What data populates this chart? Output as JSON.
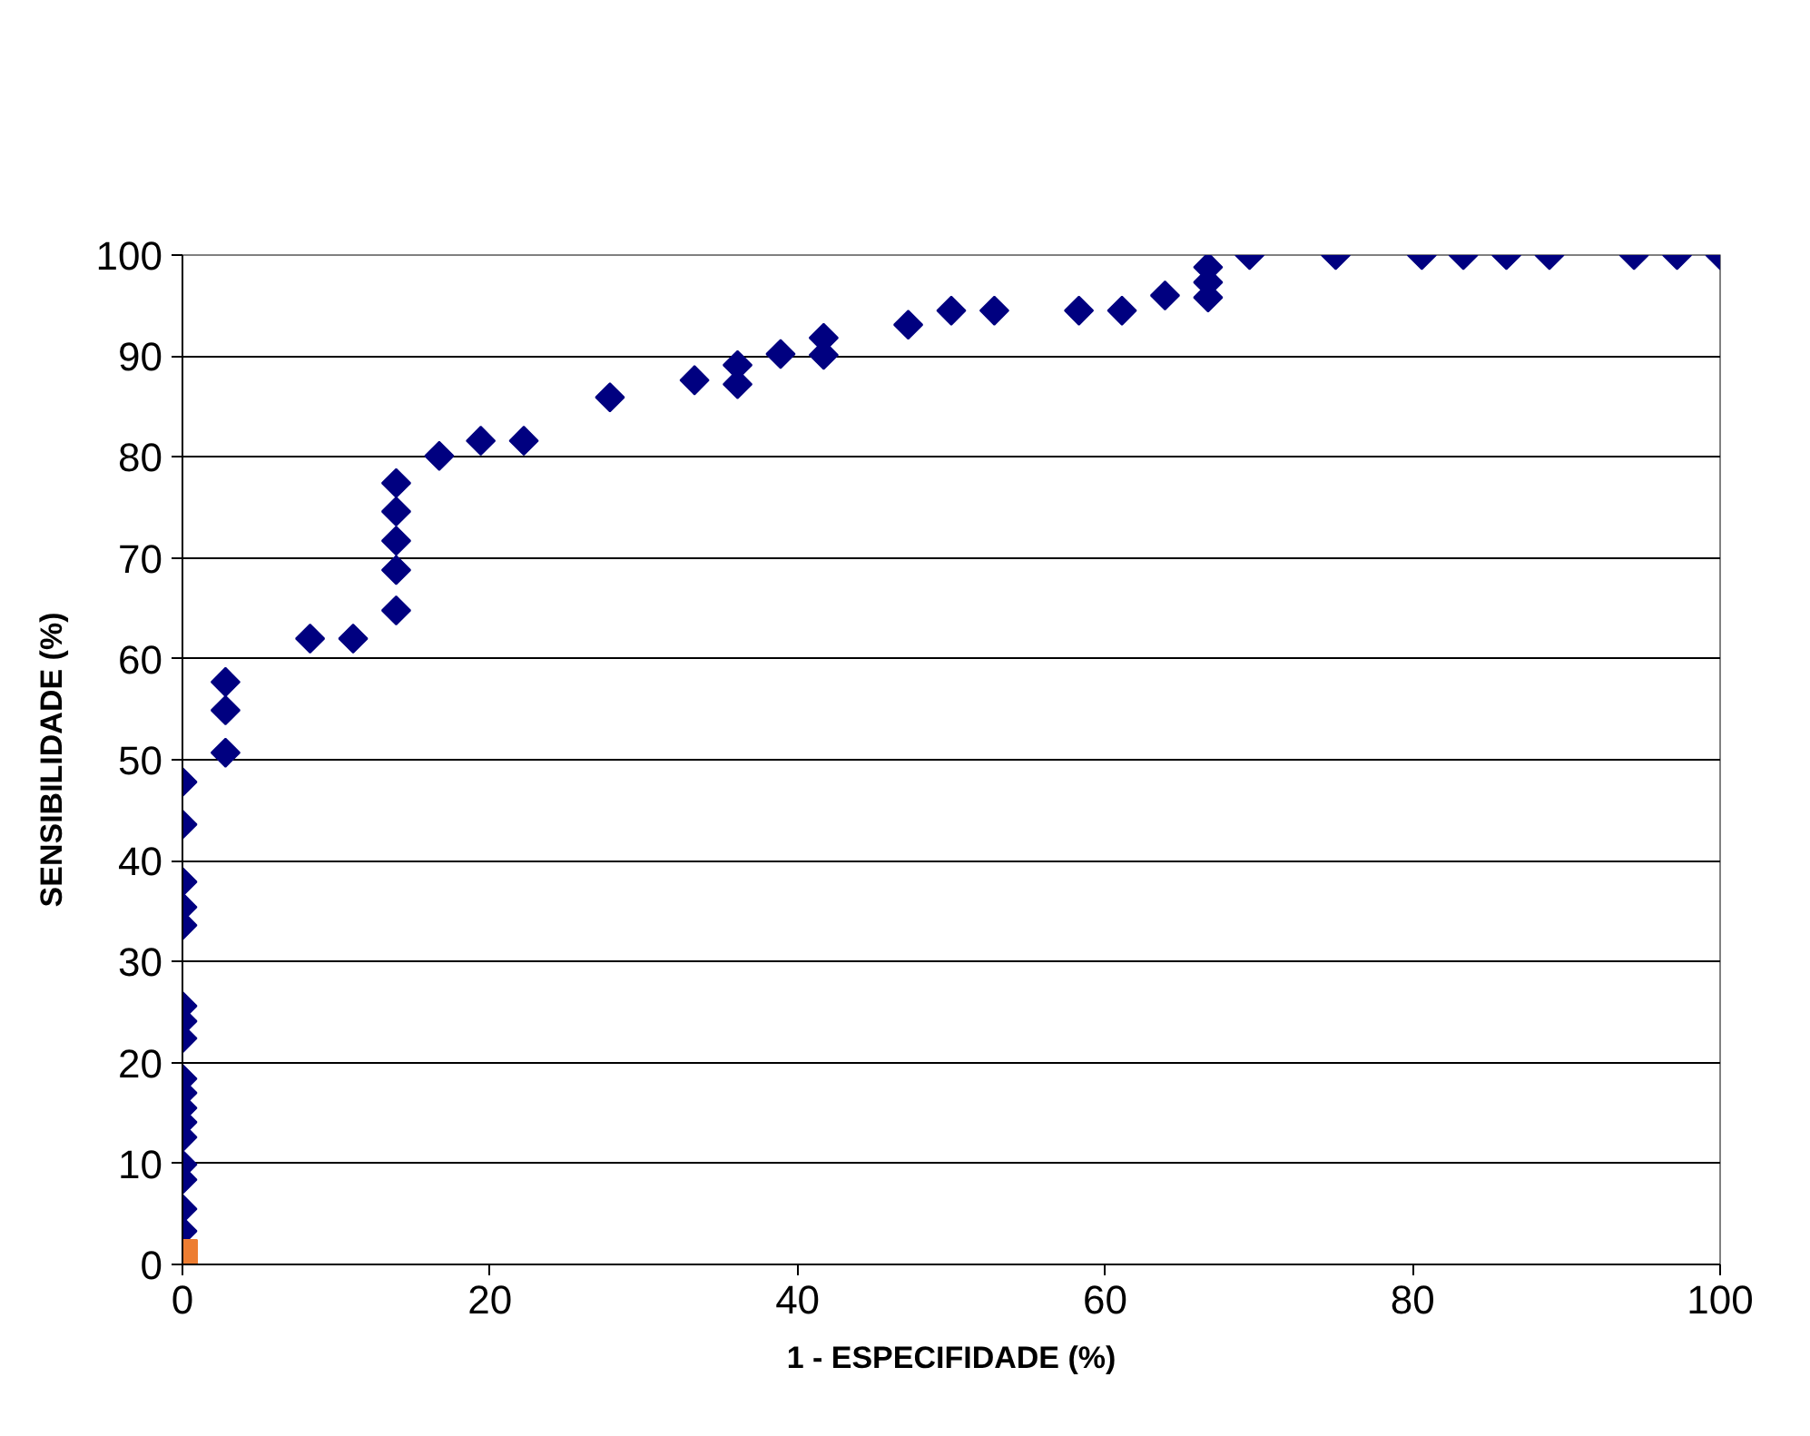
{
  "chart_data": {
    "type": "scatter",
    "xlabel": "1 - ESPECIFIDADE (%)",
    "ylabel": "SENSIBILIDADE (%)",
    "xlim": [
      0,
      100
    ],
    "ylim": [
      0,
      100
    ],
    "xticks": [
      0,
      20,
      40,
      60,
      80,
      100
    ],
    "yticks": [
      0,
      10,
      20,
      30,
      40,
      50,
      60,
      70,
      80,
      90,
      100
    ],
    "grid": "y",
    "series": [
      {
        "color": "#000080",
        "marker": "diamond",
        "x": [
          0,
          0,
          0,
          0,
          0,
          0,
          0,
          0,
          0,
          0,
          0,
          0,
          0,
          0,
          0,
          0,
          0,
          2.8,
          2.8,
          2.8,
          8.3,
          11.1,
          13.9,
          13.9,
          13.9,
          13.9,
          13.9,
          16.7,
          19.4,
          22.2,
          27.8,
          33.3,
          36.1,
          36.1,
          38.9,
          41.7,
          41.7,
          47.2,
          50,
          52.8,
          58.3,
          61.1,
          63.9,
          66.7,
          66.7,
          66.7,
          69.4,
          75,
          80.6,
          83.3,
          86.1,
          88.9,
          94.4,
          97.2,
          100
        ],
        "values": [
          47.8,
          43.6,
          37.9,
          35.4,
          33.6,
          25.6,
          24.1,
          22.4,
          18.4,
          17,
          15.5,
          14.1,
          12.6,
          9.9,
          8.4,
          5.5,
          3.3,
          57.7,
          54.9,
          50.7,
          62,
          62,
          77.4,
          74.6,
          71.7,
          68.8,
          64.8,
          80.1,
          81.6,
          81.6,
          85.9,
          87.6,
          89.1,
          87.2,
          90.2,
          91.8,
          90.1,
          93.1,
          94.5,
          94.5,
          94.5,
          94.5,
          96,
          98.8,
          97.3,
          95.8,
          100,
          100,
          100,
          100,
          100,
          100,
          100,
          100,
          100
        ]
      },
      {
        "color": "#ed7d31",
        "marker": "square",
        "x": [
          0
        ],
        "values": [
          1
        ]
      }
    ]
  }
}
